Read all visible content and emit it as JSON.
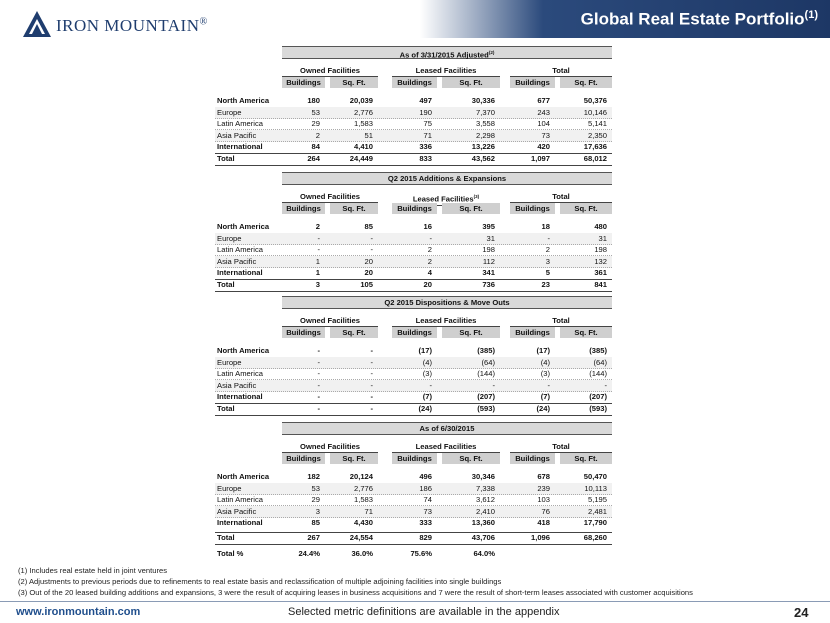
{
  "header": {
    "logo": "IRON MOUNTAIN",
    "logo_mark": "®",
    "title": "Global Real Estate Portfolio",
    "title_note": "(1)"
  },
  "sections": [
    {
      "title": "As of 3/31/2015 Adjusted",
      "title_note": "(2)",
      "groups": [
        {
          "label": "Owned Facilities"
        },
        {
          "label": "Leased Facilities"
        },
        {
          "label": "Total"
        }
      ],
      "subheaders": [
        "Buildings",
        "Sq. Ft.",
        "Buildings",
        "Sq. Ft.",
        "Buildings",
        "Sq. Ft."
      ],
      "rows": [
        {
          "label": "North America",
          "cells": [
            "180",
            "20,039",
            "497",
            "30,336",
            "677",
            "50,376"
          ]
        },
        {
          "label": "Europe",
          "cells": [
            "53",
            "2,776",
            "190",
            "7,370",
            "243",
            "10,146"
          ]
        },
        {
          "label": "Latin America",
          "cells": [
            "29",
            "1,583",
            "75",
            "3,558",
            "104",
            "5,141"
          ]
        },
        {
          "label": "Asia Pacific",
          "cells": [
            "2",
            "51",
            "71",
            "2,298",
            "73",
            "2,350"
          ]
        },
        {
          "label": "International",
          "cells": [
            "84",
            "4,410",
            "336",
            "13,226",
            "420",
            "17,636"
          ]
        },
        {
          "label": "Total",
          "cells": [
            "264",
            "24,449",
            "833",
            "43,562",
            "1,097",
            "68,012"
          ]
        }
      ]
    },
    {
      "title": "Q2 2015 Additions & Expansions",
      "groups": [
        {
          "label": "Owned Facilities"
        },
        {
          "label": "Leased Facilities",
          "note": "(3)"
        },
        {
          "label": "Total"
        }
      ],
      "subheaders": [
        "Buildings",
        "Sq. Ft.",
        "Buildings",
        "Sq. Ft.",
        "Buildings",
        "Sq. Ft."
      ],
      "rows": [
        {
          "label": "North America",
          "cells": [
            "2",
            "85",
            "16",
            "395",
            "18",
            "480"
          ]
        },
        {
          "label": "Europe",
          "cells": [
            "-",
            "-",
            "-",
            "31",
            "-",
            "31"
          ]
        },
        {
          "label": "Latin America",
          "cells": [
            "-",
            "-",
            "2",
            "198",
            "2",
            "198"
          ]
        },
        {
          "label": "Asia Pacific",
          "cells": [
            "1",
            "20",
            "2",
            "112",
            "3",
            "132"
          ]
        },
        {
          "label": "International",
          "cells": [
            "1",
            "20",
            "4",
            "341",
            "5",
            "361"
          ]
        },
        {
          "label": "Total",
          "cells": [
            "3",
            "105",
            "20",
            "736",
            "23",
            "841"
          ]
        }
      ]
    },
    {
      "title": "Q2 2015 Dispositions & Move Outs",
      "groups": [
        {
          "label": "Owned Facilities"
        },
        {
          "label": "Leased Facilities"
        },
        {
          "label": "Total"
        }
      ],
      "subheaders": [
        "Buildings",
        "Sq. Ft.",
        "Buildings",
        "Sq. Ft.",
        "Buildings",
        "Sq. Ft."
      ],
      "rows": [
        {
          "label": "North America",
          "cells": [
            "-",
            "-",
            "(17)",
            "(385)",
            "(17)",
            "(385)"
          ]
        },
        {
          "label": "Europe",
          "cells": [
            "-",
            "-",
            "(4)",
            "(64)",
            "(4)",
            "(64)"
          ]
        },
        {
          "label": "Latin America",
          "cells": [
            "-",
            "-",
            "(3)",
            "(144)",
            "(3)",
            "(144)"
          ]
        },
        {
          "label": "Asia Pacific",
          "cells": [
            "-",
            "-",
            "-",
            "-",
            "-",
            "-"
          ]
        },
        {
          "label": "International",
          "cells": [
            "-",
            "-",
            "(7)",
            "(207)",
            "(7)",
            "(207)"
          ]
        },
        {
          "label": "Total",
          "cells": [
            "-",
            "-",
            "(24)",
            "(593)",
            "(24)",
            "(593)"
          ]
        }
      ]
    },
    {
      "title": "As of 6/30/2015",
      "groups": [
        {
          "label": "Owned Facilities"
        },
        {
          "label": "Leased Facilities"
        },
        {
          "label": "Total"
        }
      ],
      "subheaders": [
        "Buildings",
        "Sq. Ft.",
        "Buildings",
        "Sq. Ft.",
        "Buildings",
        "Sq. Ft."
      ],
      "rows": [
        {
          "label": "North America",
          "cells": [
            "182",
            "20,124",
            "496",
            "30,346",
            "678",
            "50,470"
          ]
        },
        {
          "label": "Europe",
          "cells": [
            "53",
            "2,776",
            "186",
            "7,338",
            "239",
            "10,113"
          ]
        },
        {
          "label": "Latin America",
          "cells": [
            "29",
            "1,583",
            "74",
            "3,612",
            "103",
            "5,195"
          ]
        },
        {
          "label": "Asia Pacific",
          "cells": [
            "3",
            "71",
            "73",
            "2,410",
            "76",
            "2,481"
          ]
        },
        {
          "label": "International",
          "cells": [
            "85",
            "4,430",
            "333",
            "13,360",
            "418",
            "17,790"
          ]
        },
        {
          "label": "Total",
          "cells": [
            "267",
            "24,554",
            "829",
            "43,706",
            "1,096",
            "68,260"
          ]
        },
        {
          "label": "Total %",
          "cells": [
            "24.4%",
            "36.0%",
            "75.6%",
            "64.0%"
          ]
        }
      ]
    }
  ],
  "footnotes": [
    "(1) Includes real estate held in joint ventures",
    "(2) Adjustments to previous periods due to refinements to real estate basis and reclassification of multiple adjoining facilities into single buildings",
    "(3) Out of the 20 leased building additions and expansions, 3 were the result of acquiring leases in business acquisitions and 7 were the result of short-term leases associated with customer acquisitions"
  ],
  "footer": {
    "url": "www.ironmountain.com",
    "note": "Selected metric definitions are available in the appendix",
    "page": "24"
  }
}
